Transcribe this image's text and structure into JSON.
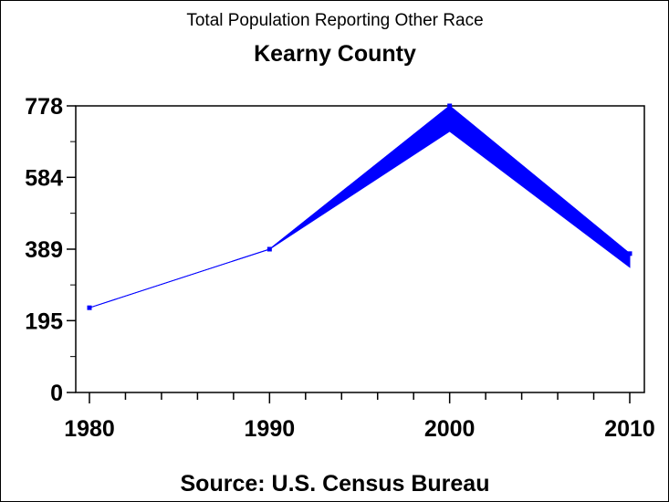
{
  "chart_data": {
    "type": "line",
    "title": "Total Population Reporting Other Race",
    "subtitle": "Kearny County",
    "footnote": "Source: U.S. Census Bureau",
    "xlabel": "",
    "ylabel": "",
    "x": [
      1980,
      1990,
      2000,
      2010
    ],
    "x_ticks": [
      "1980",
      "1990",
      "2000",
      "2010"
    ],
    "xlim": [
      1980,
      2010
    ],
    "ylim": [
      0,
      778
    ],
    "y_ticks": [
      0,
      195,
      389,
      584,
      778
    ],
    "y_tick_labels": [
      "0",
      "195",
      "389",
      "584",
      "778"
    ],
    "series": [
      {
        "name": "Other Race",
        "values": [
          230,
          389,
          778,
          377
        ],
        "lower": [
          230,
          389,
          709,
          340
        ],
        "color": "#0000ff"
      }
    ],
    "grid": false
  }
}
